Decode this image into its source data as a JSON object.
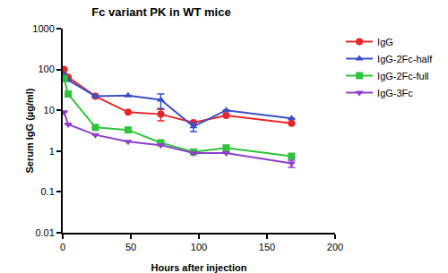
{
  "chart_data": {
    "type": "line",
    "title": "Fc variant PK in WT mice",
    "x_label": "Hours after injection",
    "y_label": "Serum IgG (µg/ml)",
    "log": "y",
    "grid": false,
    "legend": "right",
    "xlim": [
      0,
      200
    ],
    "xticks": [
      0,
      50,
      100,
      150,
      200
    ],
    "ylim": [
      0.01,
      1000
    ],
    "yticks": [
      0.01,
      0.1,
      1,
      10,
      100,
      1000
    ],
    "x": [
      1,
      4,
      24,
      48,
      72,
      96,
      120,
      168
    ],
    "series": [
      {
        "name": "IgG",
        "color": "#e8262a",
        "marker": "circle",
        "values": [
          100,
          65,
          22,
          9,
          8,
          5,
          7.5,
          4.8
        ],
        "errors": [
          0,
          0,
          0,
          0,
          2.5,
          0,
          0,
          0
        ]
      },
      {
        "name": "IgG-2Fc-half",
        "color": "#3b4fc4",
        "marker": "triangle-up",
        "values": [
          75,
          55,
          22,
          23,
          18,
          4,
          10,
          6.3
        ],
        "errors": [
          0,
          0,
          0,
          0,
          7,
          1,
          0,
          0
        ]
      },
      {
        "name": "IgG-2Fc-full",
        "color": "#2fc23c",
        "marker": "square",
        "values": [
          60,
          25,
          3.8,
          3.3,
          1.6,
          0.95,
          1.2,
          0.75
        ],
        "errors": [
          0,
          0,
          0,
          0,
          0,
          0,
          0,
          0
        ]
      },
      {
        "name": "IgG-3Fc",
        "color": "#8e3fc8",
        "marker": "triangle-down",
        "values": [
          9,
          4.5,
          2.5,
          1.7,
          1.4,
          0.9,
          0.9,
          0.5
        ],
        "errors": [
          0,
          0,
          0,
          0,
          0,
          0,
          0,
          0.1
        ]
      }
    ]
  }
}
